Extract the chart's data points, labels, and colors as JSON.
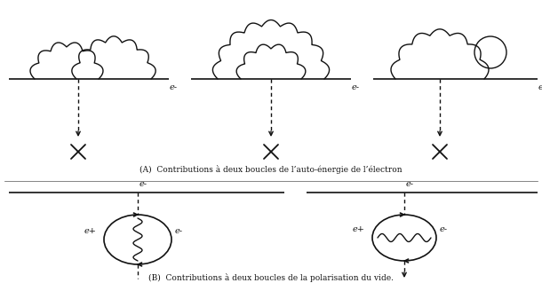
{
  "fig_width": 6.1,
  "fig_height": 3.19,
  "dpi": 100,
  "bg_color": "#ffffff",
  "line_color": "#111111",
  "caption_a": "(A)  Contributions à deux boucles de l’auto-énergie de l’électron",
  "caption_b": "(B)  Contributions à deux boucles de la polarisation du vide.",
  "label_eminus": "e-",
  "label_eplus": "e+"
}
